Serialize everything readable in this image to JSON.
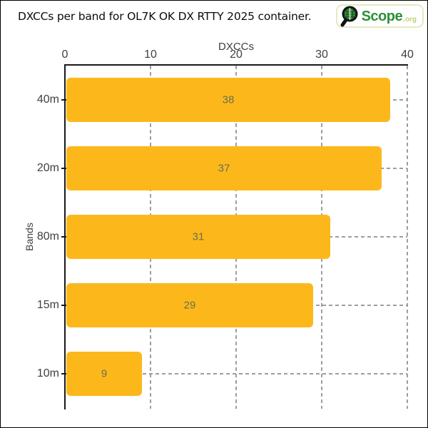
{
  "frame": {
    "title": "DXCCs per band for OL7K OK DX RTTY 2025 container."
  },
  "logo": {
    "brand": "Scope",
    "suffix": ".org",
    "icon": "magnifier-globe-icon",
    "brand_color": "#2D8F35",
    "suffix_color": "#C3CF72",
    "border_color": "#E6E9C2"
  },
  "chart_data": {
    "type": "bar",
    "orientation": "horizontal",
    "title": "DXCCs per band for OL7K OK DX RTTY 2025 container.",
    "xlabel": "DXCCs",
    "ylabel": "Bands",
    "categories": [
      "40m",
      "20m",
      "80m",
      "15m",
      "10m"
    ],
    "values": [
      38,
      37,
      31,
      29,
      9
    ],
    "xlim": [
      0,
      40
    ],
    "xticks": [
      0,
      10,
      20,
      30,
      40
    ],
    "grid": true,
    "legend": false,
    "colors": {
      "bar": "#FCB81B",
      "bar_value_label": "#6B6E52",
      "axis_line": "#1A1A1A",
      "gridline": "#9E9E9E",
      "tick_label": "#404040"
    }
  }
}
